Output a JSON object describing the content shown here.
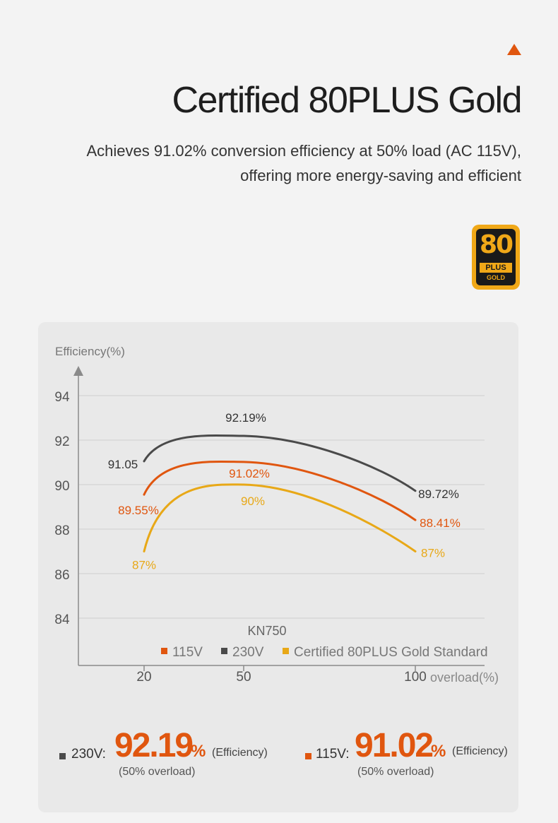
{
  "header": {
    "title": "Certified 80PLUS Gold",
    "subtitle_line1": "Achieves 91.02% conversion efficiency at 50% load (AC 115V),",
    "subtitle_line2": "offering more energy-saving and efficient"
  },
  "badge": {
    "number": "80",
    "plus": "PLUS",
    "level": "GOLD",
    "color": "#f0a818"
  },
  "colors": {
    "accent": "#e0560f",
    "s115": "#e0560f",
    "s230": "#4a4a4a",
    "standard": "#e8a817"
  },
  "chart_data": {
    "type": "line",
    "ylabel": "Efficiency(%)",
    "xlabel": "overload(%)",
    "model": "KN750",
    "x": [
      20,
      50,
      100
    ],
    "xticks": [
      "20",
      "50",
      "100"
    ],
    "yticks": [
      84,
      86,
      88,
      90,
      92,
      94
    ],
    "ylim": [
      82,
      96
    ],
    "grid": true,
    "legend_position": "bottom-right",
    "series": [
      {
        "name": "230V",
        "color": "#4a4a4a",
        "values": [
          91.05,
          92.19,
          89.72
        ],
        "labels": [
          "91.05",
          "92.19%",
          "89.72%"
        ]
      },
      {
        "name": "115V",
        "color": "#e0560f",
        "values": [
          89.55,
          91.02,
          88.41
        ],
        "labels": [
          "89.55%",
          "91.02%",
          "88.41%"
        ]
      },
      {
        "name": "Certified 80PLUS Gold Standard",
        "color": "#e8a817",
        "values": [
          87,
          90,
          87
        ],
        "labels": [
          "87%",
          "90%",
          "87%"
        ]
      }
    ],
    "legend": [
      "115V",
      "230V",
      "Certified 80PLUS Gold Standard"
    ]
  },
  "stats": [
    {
      "label": "230V:",
      "value": "92.19",
      "pct": "%",
      "note": "(Efficiency)",
      "sub": "(50% overload)",
      "square_color": "#4a4a4a"
    },
    {
      "label": "115V:",
      "value": "91.02",
      "pct": "%",
      "note": "(Efficiency)",
      "sub": "(50% overload)",
      "square_color": "#e0560f"
    }
  ]
}
